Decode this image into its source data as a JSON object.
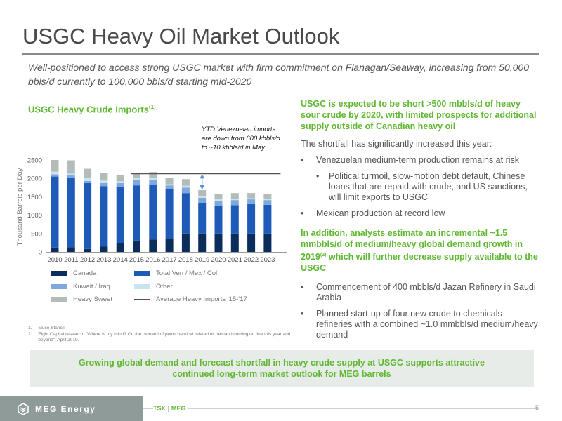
{
  "title": "USGC Heavy Oil Market Outlook",
  "subtitle": "Well-positioned to access strong USGC market with firm commitment on Flanagan/Seaway, increasing from 50,000 bbls/d currently to 100,000 bbls/d starting mid-2020",
  "chart_title": "USGC Heavy Crude Imports",
  "chart_title_sup": "(1)",
  "annotation": "YTD Venezuelan imports are down from 600 kbbls/d to ~10 kbbls/d in May",
  "chart_data": {
    "type": "bar",
    "stacked": true,
    "ylabel": "Thousand Barrels per Day",
    "ylim": [
      0,
      2500
    ],
    "yticks": [
      "0",
      "500",
      "1000",
      "1500",
      "2000",
      "2500"
    ],
    "categories": [
      "2010",
      "2011",
      "2012",
      "2013",
      "2014",
      "2015",
      "2016",
      "2017",
      "2018",
      "2019",
      "2020",
      "2021",
      "2022",
      "2023"
    ],
    "series": [
      {
        "name": "Canada",
        "color": "#0b2d5c",
        "values": [
          120,
          130,
          80,
          150,
          230,
          310,
          340,
          370,
          500,
          500,
          500,
          500,
          500,
          500
        ]
      },
      {
        "name": "Total Ven / Mex / Col",
        "color": "#1e5bb8",
        "values": [
          1930,
          1890,
          1790,
          1640,
          1530,
          1500,
          1490,
          1340,
          1100,
          820,
          750,
          770,
          800,
          780
        ]
      },
      {
        "name": "Kuwait / Iraq",
        "color": "#7fa9de",
        "values": [
          60,
          60,
          60,
          80,
          110,
          140,
          120,
          100,
          150,
          150,
          130,
          140,
          130,
          130
        ]
      },
      {
        "name": "Other",
        "color": "#c8e4f2",
        "values": [
          70,
          50,
          90,
          70,
          50,
          60,
          60,
          30,
          50,
          50,
          50,
          40,
          30,
          30
        ]
      },
      {
        "name": "Heavy Sweet",
        "color": "#b4bcb9",
        "values": [
          320,
          360,
          240,
          210,
          160,
          120,
          160,
          180,
          180,
          160,
          150,
          150,
          140,
          140
        ]
      }
    ],
    "average_line": {
      "name": "Average Heavy Imports '15-'17",
      "value": 2130,
      "start_category": "2015",
      "end_category": "2023"
    }
  },
  "legend": {
    "canada": "Canada",
    "total_ven": "Total Ven / Mex / Col",
    "kuwait": "Kuwait / Iraq",
    "other": "Other",
    "heavy_sweet": "Heavy Sweet",
    "average": "Average Heavy Imports '15-'17"
  },
  "footnotes": [
    {
      "num": "1.",
      "text": "Muse Stancil"
    },
    {
      "num": "2.",
      "text": "Eight Capital research, \"Where is my mind? On the tsunami of petrochemical related oil demand coming on line this year and beyond\". April 2019."
    }
  ],
  "right": {
    "heading1": "USGC is expected to be short >500 mbbls/d of heavy sour crude by 2020, with limited prospects for additional supply outside of Canadian heavy oil",
    "text1": "The shortfall has significantly increased this year:",
    "bullet1": "Venezuelan medium-term production remains at risk",
    "sub_bullet1": "Political turmoil, slow-motion debt default, Chinese loans that are repaid with crude, and US sanctions, will limit exports to USGC",
    "bullet2": "Mexican production at record low",
    "heading2_a": "In addition, analysts estimate an incremental ~1.5 mmbbls/d of medium/heavy global demand growth in 2019",
    "heading2_sup": "(2)",
    "heading2_b": " which will further decrease supply available to the USGC",
    "bullet3": "Commencement of 400 mbbls/d Jazan Refinery in Saudi Arabia",
    "bullet4": "Planned start-up of four new crude to chemicals refineries with a combined ~1.0 mmbbls/d medium/heavy demand"
  },
  "callout": "Growing global demand and forecast shortfall in heavy crude supply at USGC supports attractive continued long-term market outlook for MEG barrels",
  "footer": {
    "logo": "MEG Energy",
    "ticker_exchange": "TSX",
    "ticker_sep": "|",
    "ticker_symbol": "MEG",
    "page": "5"
  },
  "colors": {
    "accent_green": "#5fb832",
    "title_gray": "#4a4a4a",
    "avg_line": "#555555"
  }
}
